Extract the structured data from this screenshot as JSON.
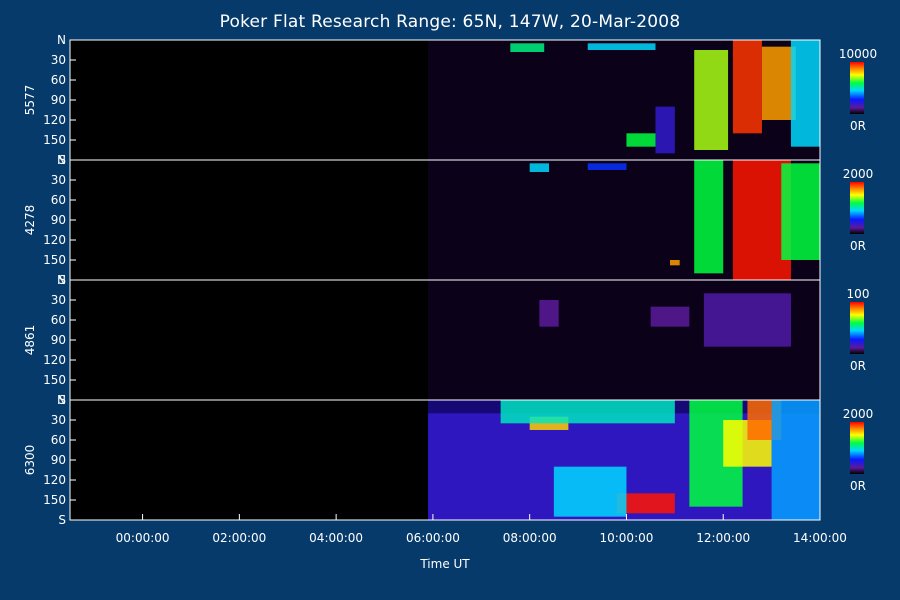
{
  "chart_data": {
    "type": "heatmap",
    "title": "Poker Flat Research Range: 65N, 147W, 20-Mar-2008",
    "xlabel": "Time UT",
    "x_ticks": [
      "00:00:00",
      "02:00:00",
      "04:00:00",
      "06:00:00",
      "08:00:00",
      "10:00:00",
      "12:00:00",
      "14:00:00"
    ],
    "x_range_hours": [
      -1.5,
      14
    ],
    "y_ticks": [
      "N",
      "30",
      "60",
      "90",
      "120",
      "150",
      "S"
    ],
    "y_range": [
      0,
      180
    ],
    "data_start_hour": 5.9,
    "colorscale": "rainbow",
    "panels": [
      {
        "wavelength": "5577",
        "cmax_label": "10000",
        "cmin_label": "0R",
        "blobs": [
          {
            "t": [
              7.6,
              8.3
            ],
            "y": [
              5,
              18
            ],
            "level": 0.55
          },
          {
            "t": [
              9.2,
              10.6
            ],
            "y": [
              5,
              15
            ],
            "level": 0.45
          },
          {
            "t": [
              10.6,
              11.0
            ],
            "y": [
              100,
              170
            ],
            "level": 0.2
          },
          {
            "t": [
              11.4,
              12.1
            ],
            "y": [
              15,
              165
            ],
            "level": 0.7
          },
          {
            "t": [
              12.2,
              12.8
            ],
            "y": [
              0,
              140
            ],
            "level": 0.95
          },
          {
            "t": [
              12.8,
              13.5
            ],
            "y": [
              10,
              120
            ],
            "level": 0.85
          },
          {
            "t": [
              13.4,
              14.0
            ],
            "y": [
              0,
              160
            ],
            "level": 0.45
          },
          {
            "t": [
              10.0,
              10.6
            ],
            "y": [
              140,
              160
            ],
            "level": 0.6
          }
        ]
      },
      {
        "wavelength": "4278",
        "cmax_label": "2000",
        "cmin_label": "0R",
        "blobs": [
          {
            "t": [
              8.0,
              8.4
            ],
            "y": [
              5,
              18
            ],
            "level": 0.45
          },
          {
            "t": [
              9.2,
              10.0
            ],
            "y": [
              5,
              15
            ],
            "level": 0.3
          },
          {
            "t": [
              11.4,
              12.0
            ],
            "y": [
              0,
              170
            ],
            "level": 0.6
          },
          {
            "t": [
              12.2,
              13.4
            ],
            "y": [
              0,
              180
            ],
            "level": 0.98
          },
          {
            "t": [
              13.2,
              14.0
            ],
            "y": [
              5,
              150
            ],
            "level": 0.6
          },
          {
            "t": [
              10.9,
              11.1
            ],
            "y": [
              150,
              158
            ],
            "level": 0.85
          }
        ]
      },
      {
        "wavelength": "4861",
        "cmax_label": "100",
        "cmin_label": "0R",
        "blobs": [
          {
            "t": [
              8.2,
              8.6
            ],
            "y": [
              30,
              70
            ],
            "level": 0.12
          },
          {
            "t": [
              10.5,
              11.3
            ],
            "y": [
              40,
              70
            ],
            "level": 0.12
          },
          {
            "t": [
              11.6,
              13.4
            ],
            "y": [
              20,
              100
            ],
            "level": 0.14
          }
        ]
      },
      {
        "wavelength": "6300",
        "cmax_label": "2000",
        "cmin_label": "0R",
        "blobs": [
          {
            "t": [
              5.9,
              14.0
            ],
            "y": [
              20,
              180
            ],
            "level": 0.2
          },
          {
            "t": [
              8.0,
              8.8
            ],
            "y": [
              25,
              45
            ],
            "level": 0.8
          },
          {
            "t": [
              7.4,
              11.0
            ],
            "y": [
              0,
              35
            ],
            "level": 0.5
          },
          {
            "t": [
              9.8,
              11.0
            ],
            "y": [
              140,
              170
            ],
            "level": 0.98
          },
          {
            "t": [
              11.3,
              12.4
            ],
            "y": [
              0,
              160
            ],
            "level": 0.6
          },
          {
            "t": [
              12.0,
              13.0
            ],
            "y": [
              30,
              100
            ],
            "level": 0.75
          },
          {
            "t": [
              12.5,
              13.2
            ],
            "y": [
              0,
              60
            ],
            "level": 0.9
          },
          {
            "t": [
              8.5,
              10.0
            ],
            "y": [
              100,
              175
            ],
            "level": 0.45
          },
          {
            "t": [
              13.0,
              14.0
            ],
            "y": [
              0,
              180
            ],
            "level": 0.4
          }
        ]
      }
    ]
  }
}
